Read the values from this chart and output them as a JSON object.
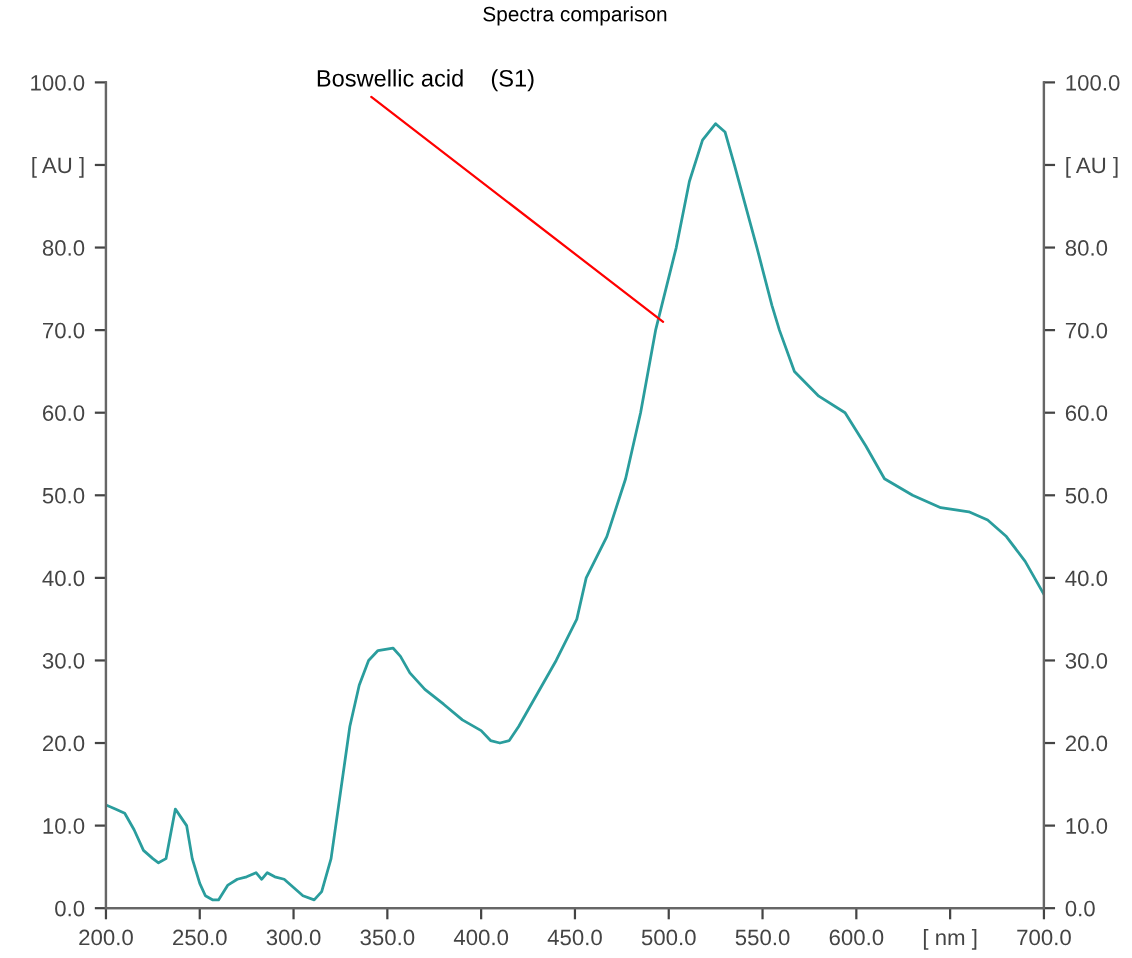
{
  "chart_data": {
    "type": "line",
    "title": "Spectra comparison",
    "annotations": [
      {
        "text": "Boswellic acid    (S1)",
        "x": 497,
        "y": 71
      }
    ],
    "xlim": [
      200,
      700
    ],
    "ylim": [
      0,
      100
    ],
    "y2lim": [
      0,
      100
    ],
    "xticks": [
      {
        "value": 200,
        "label": "200.0"
      },
      {
        "value": 250,
        "label": "250.0"
      },
      {
        "value": 300,
        "label": "300.0"
      },
      {
        "value": 350,
        "label": "350.0"
      },
      {
        "value": 400,
        "label": "400.0"
      },
      {
        "value": 450,
        "label": "450.0"
      },
      {
        "value": 500,
        "label": "500.0"
      },
      {
        "value": 550,
        "label": "550.0"
      },
      {
        "value": 600,
        "label": "600.0"
      },
      {
        "value": 650,
        "label": "[ nm ]"
      },
      {
        "value": 700,
        "label": "700.0"
      }
    ],
    "yticks": [
      {
        "value": 0,
        "label": "0.0"
      },
      {
        "value": 10,
        "label": "10.0"
      },
      {
        "value": 20,
        "label": "20.0"
      },
      {
        "value": 30,
        "label": "30.0"
      },
      {
        "value": 40,
        "label": "40.0"
      },
      {
        "value": 50,
        "label": "50.0"
      },
      {
        "value": 60,
        "label": "60.0"
      },
      {
        "value": 70,
        "label": "70.0"
      },
      {
        "value": 80,
        "label": "80.0"
      },
      {
        "value": 90,
        "label": "[ AU ]"
      },
      {
        "value": 100,
        "label": "100.0"
      }
    ],
    "y2ticks": [
      {
        "value": 0,
        "label": "0.0"
      },
      {
        "value": 10,
        "label": "10.0"
      },
      {
        "value": 20,
        "label": "20.0"
      },
      {
        "value": 30,
        "label": "30.0"
      },
      {
        "value": 40,
        "label": "40.0"
      },
      {
        "value": 50,
        "label": "50.0"
      },
      {
        "value": 60,
        "label": "60.0"
      },
      {
        "value": 70,
        "label": "70.0"
      },
      {
        "value": 80,
        "label": "80.0"
      },
      {
        "value": 90,
        "label": "[ AU ]"
      },
      {
        "value": 100,
        "label": "100.0"
      }
    ],
    "grid": false,
    "legend": false,
    "series": [
      {
        "color": "#2a9d9d",
        "x": [
          200,
          205,
          210,
          215,
          220,
          225,
          228,
          232,
          237,
          240,
          243,
          246,
          250,
          253,
          257,
          260,
          265,
          270,
          275,
          280,
          283,
          286,
          290,
          295,
          300,
          305,
          311,
          315,
          320,
          325,
          330,
          335,
          340,
          345,
          353,
          357,
          362,
          366,
          370,
          380,
          390,
          400,
          405,
          410,
          415,
          420,
          425,
          430,
          440,
          451,
          456,
          467,
          477,
          485,
          493,
          504,
          511,
          518,
          525,
          530,
          535,
          547,
          555,
          559,
          567,
          580,
          594,
          605,
          615,
          630,
          645,
          660,
          670,
          680,
          690,
          695,
          700
        ],
        "values": [
          12.5,
          12,
          11.5,
          9.5,
          7,
          6,
          5.5,
          6,
          12,
          11,
          10,
          6,
          3,
          1.5,
          1,
          1,
          2.8,
          3.5,
          3.8,
          4.3,
          3.5,
          4.3,
          3.8,
          3.5,
          2.5,
          1.5,
          1,
          2,
          6,
          14,
          22,
          27,
          30,
          31.2,
          31.5,
          30.5,
          28.5,
          27.5,
          26.5,
          24.7,
          22.8,
          21.5,
          20.3,
          20,
          20.3,
          22,
          24,
          26,
          30,
          35,
          40,
          45,
          52,
          60,
          70,
          80,
          88,
          93,
          95,
          94,
          90,
          80,
          73,
          70,
          65,
          62,
          60,
          56,
          52,
          50,
          48.5,
          48,
          47,
          45,
          42,
          40,
          38
        ]
      }
    ]
  }
}
